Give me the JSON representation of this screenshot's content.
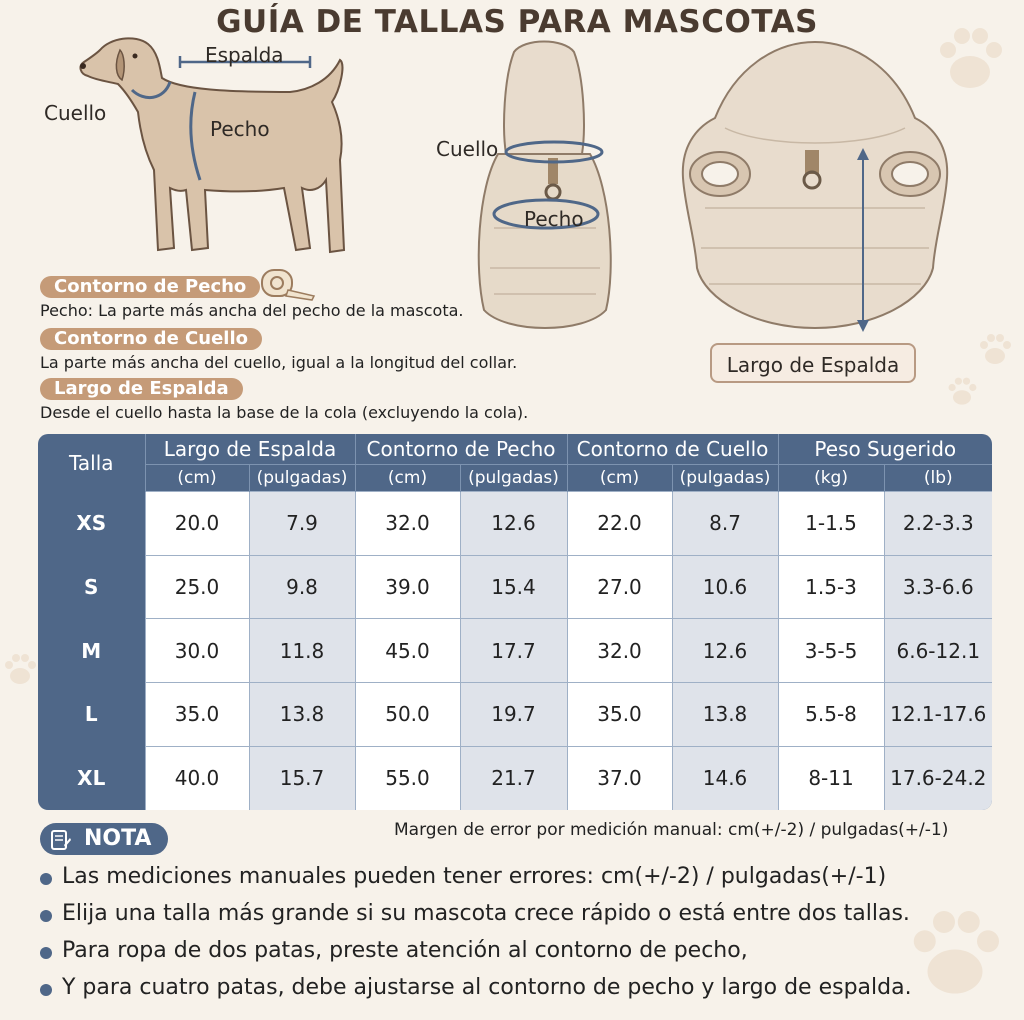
{
  "title": "GUÍA DE TALLAS PARA MASCOTAS",
  "dog_labels": {
    "back": "Espalda",
    "neck": "Cuello",
    "chest": "Pecho"
  },
  "vest_labels": {
    "neck": "Cuello",
    "chest": "Pecho"
  },
  "coat_label": "Largo de Espalda",
  "sections": [
    {
      "tag": "Contorno de Pecho",
      "desc": "Pecho: La parte más ancha del pecho de la mascota."
    },
    {
      "tag": "Contorno de Cuello",
      "desc": "La parte más ancha del cuello, igual a la longitud del collar."
    },
    {
      "tag": "Largo de Espalda",
      "desc": "Desde el cuello hasta la base de la cola (excluyendo la cola)."
    }
  ],
  "table": {
    "size_header": "Talla",
    "groups": [
      "Largo de Espalda",
      "Contorno de Pecho",
      "Contorno de Cuello",
      "Peso Sugerido"
    ],
    "units": [
      "(cm)",
      "(pulgadas)",
      "(cm)",
      "(pulgadas)",
      "(cm)",
      "(pulgadas)",
      "(kg)",
      "(lb)"
    ],
    "rows": [
      {
        "size": "XS",
        "values": [
          "20.0",
          "7.9",
          "32.0",
          "12.6",
          "22.0",
          "8.7",
          "1-1.5",
          "2.2-3.3"
        ]
      },
      {
        "size": "S",
        "values": [
          "25.0",
          "9.8",
          "39.0",
          "15.4",
          "27.0",
          "10.6",
          "1.5-3",
          "3.3-6.6"
        ]
      },
      {
        "size": "M",
        "values": [
          "30.0",
          "11.8",
          "45.0",
          "17.7",
          "32.0",
          "12.6",
          "3-5-5",
          "6.6-12.1"
        ]
      },
      {
        "size": "L",
        "values": [
          "35.0",
          "13.8",
          "50.0",
          "19.7",
          "35.0",
          "13.8",
          "5.5-8",
          "12.1-17.6"
        ]
      },
      {
        "size": "XL",
        "values": [
          "40.0",
          "15.7",
          "55.0",
          "21.7",
          "37.0",
          "14.6",
          "8-11",
          "17.6-24.2"
        ]
      }
    ]
  },
  "nota": {
    "label": "NOTA",
    "margin": "Margen de error por medición manual: cm(+/-2) / pulgadas(+/-1)",
    "items": [
      "Las mediciones manuales pueden tener errores: cm(+/-2) / pulgadas(+/-1)",
      "Elija una talla más grande si su mascota crece rápido o está entre dos tallas.",
      "Para ropa de dos patas, preste atención al contorno de pecho,",
      "Y para cuatro patas, debe ajustarse al contorno de pecho y largo de espalda."
    ]
  },
  "colors": {
    "accent": "#4f6788",
    "tag": "#c59b78",
    "background": "#f7f2ea"
  }
}
